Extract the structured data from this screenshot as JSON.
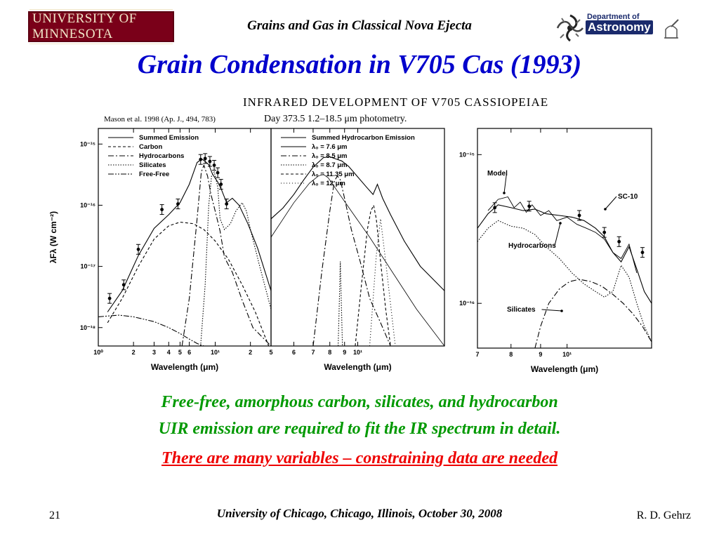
{
  "header": {
    "logo_text": "UNIVERSITY OF MINNESOTA",
    "title": "Grains and Gas in Classical Nova Ejecta",
    "dept_line1": "Department of",
    "dept_line2": "Astronomy"
  },
  "slide_title": "Grain Condensation in V705 Cas (1993)",
  "figure": {
    "heading": "INFRARED  DEVELOPMENT  OF  V705  CASSIOPEIAE",
    "subheading": "Day 373.5 1.2–18.5 μm photometry.",
    "citation": "Mason et al. 1998 (Ap. J., 494, 783)"
  },
  "chart_data": [
    {
      "type": "line",
      "panel": "left",
      "xlabel": "Wavelength (μm)",
      "ylabel": "λFλ (W cm⁻²)",
      "xscale": "log",
      "yscale": "log",
      "xlim": [
        1.0,
        30
      ],
      "ylim": [
        5e-19,
        1.8e-15
      ],
      "x_ticks": [
        "10⁰",
        "2",
        "3",
        "4",
        "5",
        "6",
        "10¹",
        "2"
      ],
      "y_ticks": [
        "10⁻¹⁵",
        "10⁻¹⁶",
        "10⁻¹⁷",
        "10⁻¹⁸"
      ],
      "legend": [
        "Summed Emission",
        "Carbon",
        "Hydrocarbons",
        "Silicates",
        "Free-Free"
      ],
      "legend_position": "top-left",
      "series": [
        {
          "name": "Summed Emission",
          "style": "solid",
          "x": [
            1.2,
            1.6,
            2.2,
            3.0,
            4.0,
            5.0,
            6.0,
            7.0,
            7.7,
            8.2,
            8.8,
            9.5,
            10.5,
            11.3,
            12.5,
            14,
            16,
            19,
            23,
            30
          ],
          "y": [
            1.8e-18,
            4e-18,
            1.5e-17,
            4.2e-17,
            7e-17,
            1.1e-16,
            2.2e-16,
            5e-16,
            5.7e-16,
            5.2e-16,
            4.6e-16,
            3.2e-16,
            2.4e-16,
            1.8e-16,
            1.1e-16,
            1.3e-16,
            1e-16,
            5e-17,
            2e-17,
            4e-18
          ]
        },
        {
          "name": "Carbon",
          "style": "dashed",
          "x": [
            1.2,
            1.6,
            2.2,
            3.0,
            4.0,
            5.0,
            6.5,
            8.0,
            10.0,
            13,
            17,
            22,
            30
          ],
          "y": [
            1.2e-18,
            3e-18,
            1e-17,
            2.8e-17,
            4.6e-17,
            5.3e-17,
            5e-17,
            4e-17,
            2.6e-17,
            1.3e-17,
            5e-18,
            1.8e-18,
            4e-19
          ]
        },
        {
          "name": "Hydrocarbons",
          "style": "dashdot",
          "x": [
            5.2,
            6.0,
            7.0,
            7.6,
            8.0,
            8.6,
            9.2,
            10.0,
            11.0,
            12.0,
            14,
            17,
            21,
            30
          ],
          "y": [
            5e-19,
            3e-18,
            6e-17,
            3.5e-16,
            4.5e-16,
            3e-16,
            1.5e-16,
            8e-17,
            3.8e-17,
            1.4e-17,
            8e-18,
            2.8e-18,
            1e-18,
            5e-19
          ]
        },
        {
          "name": "Silicates",
          "style": "dotted",
          "x": [
            7.5,
            8.2,
            8.8,
            9.3,
            9.8,
            10.5,
            11.0,
            12.0,
            13.5,
            15,
            17,
            18.5,
            20,
            24,
            30
          ],
          "y": [
            5e-19,
            5e-18,
            1e-16,
            3e-16,
            3.5e-16,
            2e-16,
            6e-17,
            4e-17,
            5e-17,
            8e-17,
            1.1e-16,
            8e-17,
            4e-17,
            1e-17,
            2e-18
          ]
        },
        {
          "name": "Free-Free",
          "style": "dashdotdot",
          "x": [
            1.0,
            1.5,
            2.0,
            3.0,
            4.0,
            5.0,
            6.0,
            7.0,
            8.0
          ],
          "y": [
            1.5e-18,
            1.6e-18,
            1.5e-18,
            1.25e-18,
            1e-18,
            8e-19,
            6.5e-19,
            5.5e-19,
            5e-19
          ]
        },
        {
          "name": "Observed",
          "style": "points",
          "x": [
            1.25,
            1.65,
            2.2,
            3.5,
            4.8,
            7.5,
            8.2,
            9.0,
            9.8,
            10.5,
            11.2,
            12.5
          ],
          "y": [
            3e-18,
            5e-18,
            1.9e-17,
            8.5e-17,
            1.05e-16,
            5.6e-16,
            5.8e-16,
            5.2e-16,
            4.5e-16,
            3.4e-16,
            2.2e-16,
            1.05e-16
          ]
        }
      ]
    },
    {
      "type": "line",
      "panel": "middle",
      "xlabel": "Wavelength (μm)",
      "xscale": "log",
      "yscale": "log",
      "xlim": [
        5.0,
        20
      ],
      "ylim": [
        5e-19,
        1.8e-15
      ],
      "x_ticks": [
        "5",
        "6",
        "7",
        "8",
        "9",
        "10¹"
      ],
      "legend": [
        "Summed Hydrocarbon Emission",
        "λ₀ = 7.6 μm",
        "λ₀ = 8.5 μm",
        "λ₀ = 8.7 μm",
        "λ₀ = 11.35 μm",
        "λ₀ = 12 μm"
      ],
      "legend_position": "top-left",
      "series": [
        {
          "name": "Summed Hydrocarbon Emission",
          "style": "solid",
          "x": [
            5.0,
            5.5,
            6.0,
            6.5,
            7.0,
            7.6,
            8.0,
            8.4,
            8.8,
            9.3,
            10.0,
            10.7,
            11.3,
            11.7,
            12.2,
            13,
            14.5,
            16.5,
            20
          ],
          "y": [
            6e-17,
            9e-17,
            1.5e-16,
            2.6e-16,
            4.2e-16,
            6e-16,
            6.2e-16,
            5.7e-16,
            5.3e-16,
            4.3e-16,
            2.9e-16,
            2e-16,
            1.5e-16,
            2.2e-16,
            1.3e-16,
            7e-17,
            2.6e-17,
            1e-17,
            4e-18
          ]
        },
        {
          "name": "λ₀ = 7.6 μm",
          "style": "solid-thin",
          "x": [
            5.0,
            6.0,
            6.8,
            7.3,
            7.6,
            7.9,
            8.5,
            9.5,
            11,
            13,
            16,
            20
          ],
          "y": [
            3e-17,
            1.1e-16,
            2.3e-16,
            3e-16,
            3.2e-16,
            2.8e-16,
            1.7e-16,
            8e-17,
            3e-17,
            9e-18,
            2e-18,
            5e-19
          ]
        },
        {
          "name": "λ₀ = 8.5 μm",
          "style": "dashdot",
          "x": [
            7.0,
            7.5,
            8.0,
            8.3,
            8.5,
            8.7,
            9.0,
            9.5,
            10.2,
            11.0,
            12.0,
            13.0
          ],
          "y": [
            5e-19,
            8e-18,
            8e-17,
            2.5e-16,
            3e-16,
            2.6e-16,
            1.3e-16,
            4e-17,
            1.2e-17,
            3e-18,
            1.2e-18,
            5e-19
          ]
        },
        {
          "name": "λ₀ = 8.7 μm",
          "style": "dotted",
          "x": [
            8.55,
            8.65,
            8.7,
            8.75,
            8.85
          ],
          "y": [
            5e-19,
            4e-18,
            1.2e-17,
            4e-18,
            5e-19
          ]
        },
        {
          "name": "λ₀ = 11.35 μm",
          "style": "dashed",
          "x": [
            9.8,
            10.3,
            10.8,
            11.1,
            11.35,
            11.6,
            12.0,
            12.5,
            13.0
          ],
          "y": [
            5e-19,
            5e-18,
            4e-17,
            8e-17,
            1e-16,
            6e-17,
            1.2e-17,
            2e-18,
            5e-19
          ]
        },
        {
          "name": "λ₀ = 12 μm",
          "style": "dotted-fine",
          "x": [
            11.0,
            11.6,
            12.0,
            12.5,
            13.5
          ],
          "y": [
            5e-19,
            1.5e-17,
            6e-17,
            1.2e-17,
            5e-19
          ]
        }
      ]
    },
    {
      "type": "line",
      "panel": "right",
      "xlabel": "Wavelength (μm)",
      "xscale": "log",
      "yscale": "log",
      "xlim": [
        7.0,
        14
      ],
      "ylim": [
        5e-17,
        1.5e-15
      ],
      "x_ticks": [
        "7",
        "8",
        "9",
        "10¹"
      ],
      "y_ticks": [
        "10⁻¹⁵",
        "10⁻¹⁶"
      ],
      "annotations": [
        "Model",
        "SC-10",
        "Hydrocarbons",
        "Silicates"
      ],
      "series": [
        {
          "name": "Model",
          "style": "solid",
          "x": [
            7.0,
            7.3,
            7.6,
            8.0,
            8.4,
            8.8,
            9.2,
            9.7,
            10.2,
            10.7,
            11.2,
            11.6,
            12.0,
            12.4,
            12.8,
            13.2,
            13.6,
            14.0
          ],
          "y": [
            3.2e-16,
            4e-16,
            4.6e-16,
            4.4e-16,
            4.2e-16,
            4.3e-16,
            4e-16,
            3.9e-16,
            3.8e-16,
            3.6e-16,
            3.2e-16,
            2.8e-16,
            2.2e-16,
            1.9e-16,
            2.4e-16,
            1.7e-16,
            1.2e-16,
            1e-16
          ]
        },
        {
          "name": "SC-10",
          "style": "noisy",
          "x": [
            7.3,
            7.6,
            7.9,
            8.1,
            8.3,
            8.5,
            8.7,
            9.0,
            9.3,
            9.6,
            10.0,
            10.4,
            10.8,
            11.2,
            11.6,
            12.0,
            12.4,
            12.8,
            13.2
          ],
          "y": [
            4.2e-16,
            5e-16,
            5.2e-16,
            4.4e-16,
            4.8e-16,
            4.1e-16,
            4.6e-16,
            3.9e-16,
            4.2e-16,
            3.6e-16,
            3.8e-16,
            3.4e-16,
            3.2e-16,
            3e-16,
            2.7e-16,
            2.2e-16,
            2e-16,
            2.5e-16,
            1.6e-16
          ]
        },
        {
          "name": "Hydrocarbons",
          "style": "dotted",
          "x": [
            7.0,
            7.3,
            7.6,
            8.0,
            8.4,
            8.8,
            9.2,
            9.7,
            10.2,
            10.7,
            11.2,
            11.6,
            12.0,
            12.4,
            12.8,
            13.2,
            13.6,
            14.0
          ],
          "y": [
            2.6e-16,
            3.2e-16,
            3.6e-16,
            3.3e-16,
            3.2e-16,
            2.9e-16,
            2.4e-16,
            2e-16,
            1.6e-16,
            1.35e-16,
            1.2e-16,
            1.1e-16,
            1.2e-16,
            1.8e-16,
            1.5e-16,
            1e-16,
            7e-17,
            5.5e-17
          ]
        },
        {
          "name": "Silicates",
          "style": "dashdot",
          "x": [
            8.8,
            9.0,
            9.3,
            9.7,
            10.1,
            10.5,
            11.0,
            11.5,
            12.0,
            12.5,
            13.0,
            13.5,
            14.0
          ],
          "y": [
            5e-17,
            7e-17,
            1e-16,
            1.25e-16,
            1.4e-16,
            1.45e-16,
            1.4e-16,
            1.3e-16,
            1.15e-16,
            1e-16,
            8.5e-17,
            7e-17,
            5.5e-17
          ]
        },
        {
          "name": "Observed",
          "style": "points",
          "x": [
            7.5,
            8.6,
            10.5,
            11.6,
            12.3,
            13.5
          ],
          "y": [
            4.4e-16,
            4.5e-16,
            3.9e-16,
            3e-16,
            2.6e-16,
            2.2e-16
          ]
        }
      ]
    }
  ],
  "caption": {
    "line1": "Free-free, amorphous carbon, silicates, and hydrocarbon",
    "line2": "UIR emission are required to fit the IR spectrum in detail.",
    "line3": "There are many variables – constraining data are needed"
  },
  "footer": {
    "page_number": "21",
    "center": "University of Chicago, Chicago, Illinois, October 30, 2008",
    "author": "R. D. Gehrz"
  },
  "colors": {
    "title": "#0000cc",
    "caption_green": "#009900",
    "caption_red": "#ee0000",
    "umn_maroon": "#7a0019",
    "astro_navy": "#1a2a6c"
  }
}
